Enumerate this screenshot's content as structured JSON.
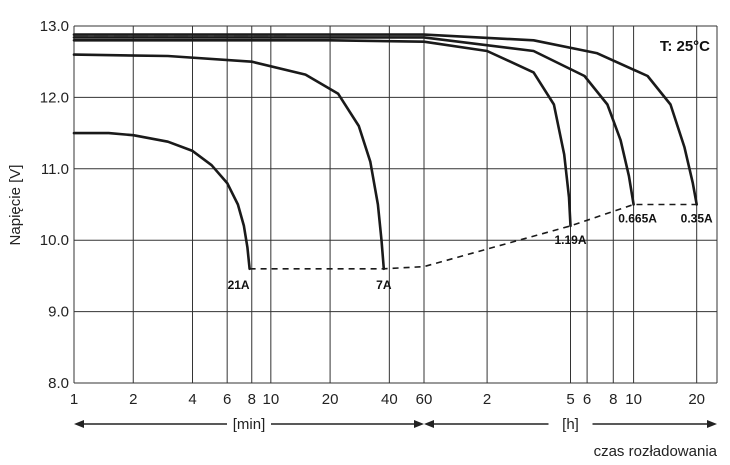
{
  "chart_data": {
    "type": "line",
    "title": "",
    "ylabel": "Napięcie [V]",
    "xlabel": "czas rozładowania",
    "annotation": "T: 25°C",
    "ylim": [
      8.0,
      13.0
    ],
    "y_ticks": [
      {
        "value": 8.0,
        "label": "8.0"
      },
      {
        "value": 9.0,
        "label": "9.0"
      },
      {
        "value": 10.0,
        "label": "10.0"
      },
      {
        "value": 11.0,
        "label": "11.0"
      },
      {
        "value": 12.0,
        "label": "12.0"
      },
      {
        "value": 13.0,
        "label": "13.0"
      }
    ],
    "x_scale": "log",
    "x_units": "minutes",
    "x_ticks": [
      {
        "minutes": 1,
        "label": "1"
      },
      {
        "minutes": 2,
        "label": "2"
      },
      {
        "minutes": 4,
        "label": "4"
      },
      {
        "minutes": 6,
        "label": "6"
      },
      {
        "minutes": 8,
        "label": "8"
      },
      {
        "minutes": 10,
        "label": "10"
      },
      {
        "minutes": 20,
        "label": "20"
      },
      {
        "minutes": 40,
        "label": "40"
      },
      {
        "minutes": 60,
        "label": "60"
      },
      {
        "minutes": 120,
        "label": "2"
      },
      {
        "minutes": 300,
        "label": "5"
      },
      {
        "minutes": 360,
        "label": "6"
      },
      {
        "minutes": 480,
        "label": "8"
      },
      {
        "minutes": 600,
        "label": "10"
      },
      {
        "minutes": 1200,
        "label": "20"
      }
    ],
    "x_unit_labels": [
      {
        "label": "[min]",
        "from_minutes": 1,
        "to_minutes": 60
      },
      {
        "label": "[h]",
        "from_minutes": 60,
        "to_minutes": 1500
      }
    ],
    "grid": true,
    "series": [
      {
        "name": "21A",
        "points": [
          [
            1.0,
            11.5
          ],
          [
            1.5,
            11.5
          ],
          [
            2.0,
            11.47
          ],
          [
            3.0,
            11.38
          ],
          [
            4.0,
            11.25
          ],
          [
            5.0,
            11.05
          ],
          [
            6.0,
            10.8
          ],
          [
            6.8,
            10.5
          ],
          [
            7.3,
            10.2
          ],
          [
            7.6,
            9.9
          ],
          [
            7.8,
            9.6
          ]
        ]
      },
      {
        "name": "7A",
        "points": [
          [
            1.0,
            12.6
          ],
          [
            3.0,
            12.58
          ],
          [
            8.0,
            12.5
          ],
          [
            15.0,
            12.32
          ],
          [
            22.0,
            12.05
          ],
          [
            28.0,
            11.6
          ],
          [
            32.0,
            11.1
          ],
          [
            35.0,
            10.5
          ],
          [
            36.5,
            10.0
          ],
          [
            37.5,
            9.6
          ]
        ]
      },
      {
        "name": "1.19A",
        "points": [
          [
            1.0,
            12.8
          ],
          [
            20.0,
            12.8
          ],
          [
            60.0,
            12.78
          ],
          [
            120.0,
            12.65
          ],
          [
            200.0,
            12.35
          ],
          [
            250.0,
            11.9
          ],
          [
            280.0,
            11.2
          ],
          [
            295.0,
            10.6
          ],
          [
            300.0,
            10.2
          ]
        ]
      },
      {
        "name": "0.665A",
        "points": [
          [
            1.0,
            12.84
          ],
          [
            60.0,
            12.84
          ],
          [
            200.0,
            12.65
          ],
          [
            350.0,
            12.3
          ],
          [
            450.0,
            11.9
          ],
          [
            520.0,
            11.4
          ],
          [
            570.0,
            10.9
          ],
          [
            600.0,
            10.5
          ]
        ]
      },
      {
        "name": "0.35A",
        "points": [
          [
            1.0,
            12.88
          ],
          [
            60.0,
            12.88
          ],
          [
            200.0,
            12.8
          ],
          [
            400.0,
            12.62
          ],
          [
            700.0,
            12.3
          ],
          [
            900.0,
            11.9
          ],
          [
            1050.0,
            11.3
          ],
          [
            1150.0,
            10.8
          ],
          [
            1200.0,
            10.5
          ]
        ]
      }
    ],
    "end_voltage_line": [
      [
        7.8,
        9.6
      ],
      [
        37.5,
        9.6
      ],
      [
        60.0,
        9.63
      ],
      [
        300.0,
        10.2
      ],
      [
        600.0,
        10.5
      ],
      [
        1200.0,
        10.5
      ]
    ]
  }
}
